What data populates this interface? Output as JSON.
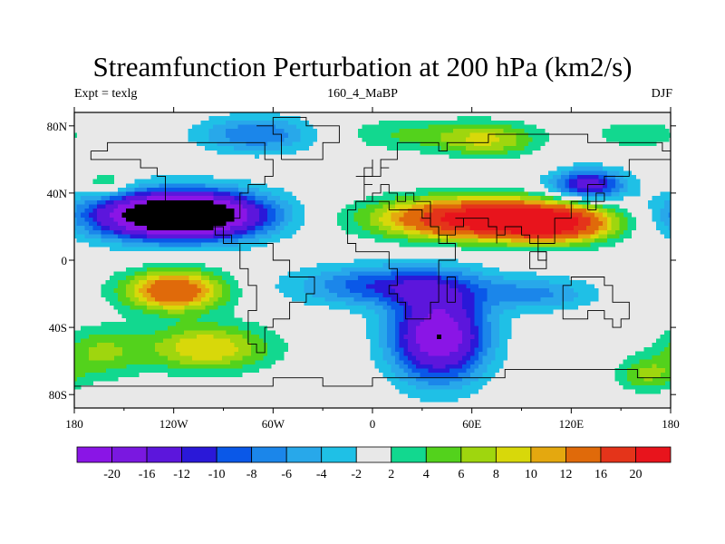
{
  "title": "Streamfunction Perturbation at 200 hPa (km2/s)",
  "subtitle_left": "Expt = texlg",
  "subtitle_center": "160_4_MaBP",
  "subtitle_right": "DJF",
  "x_ticks": [
    {
      "value": -180,
      "label": "180"
    },
    {
      "value": -120,
      "label": "120W"
    },
    {
      "value": -60,
      "label": "60W"
    },
    {
      "value": 0,
      "label": "0"
    },
    {
      "value": 60,
      "label": "60E"
    },
    {
      "value": 120,
      "label": "120E"
    },
    {
      "value": 180,
      "label": "180"
    }
  ],
  "y_ticks": [
    {
      "value": 80,
      "label": "80N"
    },
    {
      "value": 40,
      "label": "40N"
    },
    {
      "value": 0,
      "label": "0"
    },
    {
      "value": -40,
      "label": "40S"
    },
    {
      "value": -80,
      "label": "80S"
    }
  ],
  "colorbar": {
    "colors": [
      "#8a15e6",
      "#7a18e0",
      "#5c16dc",
      "#2a18d8",
      "#0a58e8",
      "#1b86ea",
      "#28a8ea",
      "#1fc0e6",
      "#e8e8e8",
      "#12d88f",
      "#53d21c",
      "#9fd60e",
      "#d8d80a",
      "#e4a80f",
      "#e06a0a",
      "#e4341a",
      "#e8141c"
    ],
    "labels": [
      "-20",
      "-16",
      "-12",
      "-10",
      "-8",
      "-6",
      "-4",
      "-2",
      "2",
      "4",
      "6",
      "8",
      "10",
      "12",
      "16",
      "20"
    ]
  },
  "field_levels": [
    {
      "index": 0,
      "color": "#e8e8e8"
    },
    {
      "index": 1,
      "color": "#1fc0e6"
    },
    {
      "index": 2,
      "color": "#28a8ea"
    },
    {
      "index": 3,
      "color": "#1b86ea"
    },
    {
      "index": 4,
      "color": "#0a58e8"
    },
    {
      "index": 5,
      "color": "#2a18d8"
    },
    {
      "index": 6,
      "color": "#5c16dc"
    },
    {
      "index": 7,
      "color": "#8a15e6"
    }
  ],
  "field_levels_pos": [
    {
      "index": 1,
      "color": "#12d88f"
    },
    {
      "index": 2,
      "color": "#53d21c"
    },
    {
      "index": 3,
      "color": "#9fd60e"
    },
    {
      "index": 4,
      "color": "#d8d80a"
    },
    {
      "index": 5,
      "color": "#e4a80f"
    },
    {
      "index": 6,
      "color": "#e06a0a"
    },
    {
      "index": 7,
      "color": "#e4341a"
    },
    {
      "index": 8,
      "color": "#e8141c"
    }
  ],
  "anomaly_centers": [
    {
      "lon": -130,
      "lat": 27,
      "value": -22,
      "sx": 45,
      "sy": 14
    },
    {
      "lon": -95,
      "lat": 27,
      "value": -14,
      "sx": 40,
      "sy": 14
    },
    {
      "lon": -70,
      "lat": 75,
      "value": -8,
      "sx": 35,
      "sy": 11
    },
    {
      "lon": -120,
      "lat": -18,
      "value": 16,
      "sx": 30,
      "sy": 12
    },
    {
      "lon": -100,
      "lat": -52,
      "value": 10,
      "sx": 38,
      "sy": 14
    },
    {
      "lon": -165,
      "lat": -55,
      "value": 6,
      "sx": 25,
      "sy": 15
    },
    {
      "lon": -160,
      "lat": 45,
      "value": 5,
      "sx": 14,
      "sy": 8
    },
    {
      "lon": 60,
      "lat": 25,
      "value": 22,
      "sx": 55,
      "sy": 12
    },
    {
      "lon": 110,
      "lat": 22,
      "value": 18,
      "sx": 35,
      "sy": 11
    },
    {
      "lon": 40,
      "lat": -45,
      "value": -20,
      "sx": 28,
      "sy": 26
    },
    {
      "lon": 10,
      "lat": -15,
      "value": -10,
      "sx": 55,
      "sy": 12
    },
    {
      "lon": 100,
      "lat": -20,
      "value": -6,
      "sx": 35,
      "sy": 10
    },
    {
      "lon": 130,
      "lat": 45,
      "value": -14,
      "sx": 22,
      "sy": 9
    },
    {
      "lon": 70,
      "lat": 72,
      "value": 8,
      "sx": 30,
      "sy": 10
    },
    {
      "lon": 20,
      "lat": 75,
      "value": 4,
      "sx": 40,
      "sy": 10
    },
    {
      "lon": 165,
      "lat": -68,
      "value": 6,
      "sx": 18,
      "sy": 10
    },
    {
      "lon": 160,
      "lat": 75,
      "value": 4,
      "sx": 25,
      "sy": 8
    }
  ]
}
